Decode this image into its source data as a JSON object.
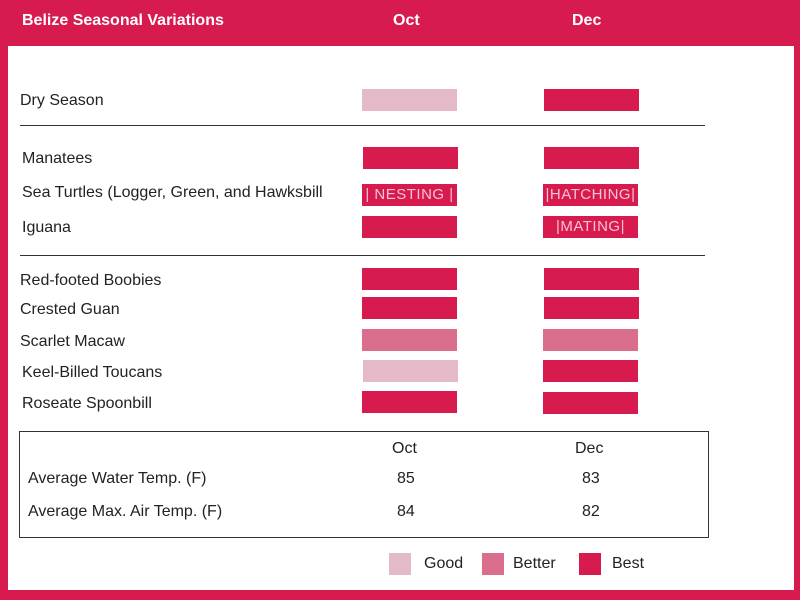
{
  "header": {
    "title": "Belize Seasonal Variations",
    "col1": "Oct",
    "col2": "Dec"
  },
  "chart_data": {
    "type": "table",
    "months": [
      "Oct",
      "Dec"
    ],
    "levels": [
      "Good",
      "Better",
      "Best"
    ],
    "groups": [
      {
        "rows": [
          {
            "label": "Dry Season",
            "oct": {
              "level": "Good",
              "text": ""
            },
            "dec": {
              "level": "Best",
              "text": ""
            }
          }
        ]
      },
      {
        "rows": [
          {
            "label": "Manatees",
            "oct": {
              "level": "Best",
              "text": ""
            },
            "dec": {
              "level": "Best",
              "text": ""
            }
          },
          {
            "label": "Sea Turtles (Logger, Green, and Hawksbill",
            "oct": {
              "level": "Best",
              "text": "| NESTING |"
            },
            "dec": {
              "level": "Best",
              "text": "|HATCHING|"
            }
          },
          {
            "label": "Iguana",
            "oct": {
              "level": "Best",
              "text": ""
            },
            "dec": {
              "level": "Best",
              "text": "|MATING|"
            }
          }
        ]
      },
      {
        "rows": [
          {
            "label": "Red-footed Boobies",
            "oct": {
              "level": "Best",
              "text": ""
            },
            "dec": {
              "level": "Best",
              "text": ""
            }
          },
          {
            "label": "Crested Guan",
            "oct": {
              "level": "Best",
              "text": ""
            },
            "dec": {
              "level": "Best",
              "text": ""
            }
          },
          {
            "label": "Scarlet Macaw",
            "oct": {
              "level": "Better",
              "text": ""
            },
            "dec": {
              "level": "Better",
              "text": ""
            }
          },
          {
            "label": "Keel-Billed Toucans",
            "oct": {
              "level": "Good",
              "text": ""
            },
            "dec": {
              "level": "Best",
              "text": ""
            }
          },
          {
            "label": "Roseate Spoonbill",
            "oct": {
              "level": "Best",
              "text": ""
            },
            "dec": {
              "level": "Best",
              "text": ""
            }
          }
        ]
      }
    ],
    "temps": {
      "headers": [
        "Oct",
        "Dec"
      ],
      "rows": [
        {
          "label": "Average Water Temp. (F)",
          "oct": "85",
          "dec": "83"
        },
        {
          "label": "Average Max. Air Temp. (F)",
          "oct": "84",
          "dec": "82"
        }
      ]
    }
  },
  "legend": [
    {
      "label": "Good",
      "color": "#E4BAC8"
    },
    {
      "label": "Better",
      "color": "#DC6E8D"
    },
    {
      "label": "Best",
      "color": "#D81B4E"
    }
  ],
  "colors": {
    "Good": "#E4BAC8",
    "Better": "#DC6E8D",
    "Best": "#D81B4E",
    "frame": "#D81B4E"
  }
}
